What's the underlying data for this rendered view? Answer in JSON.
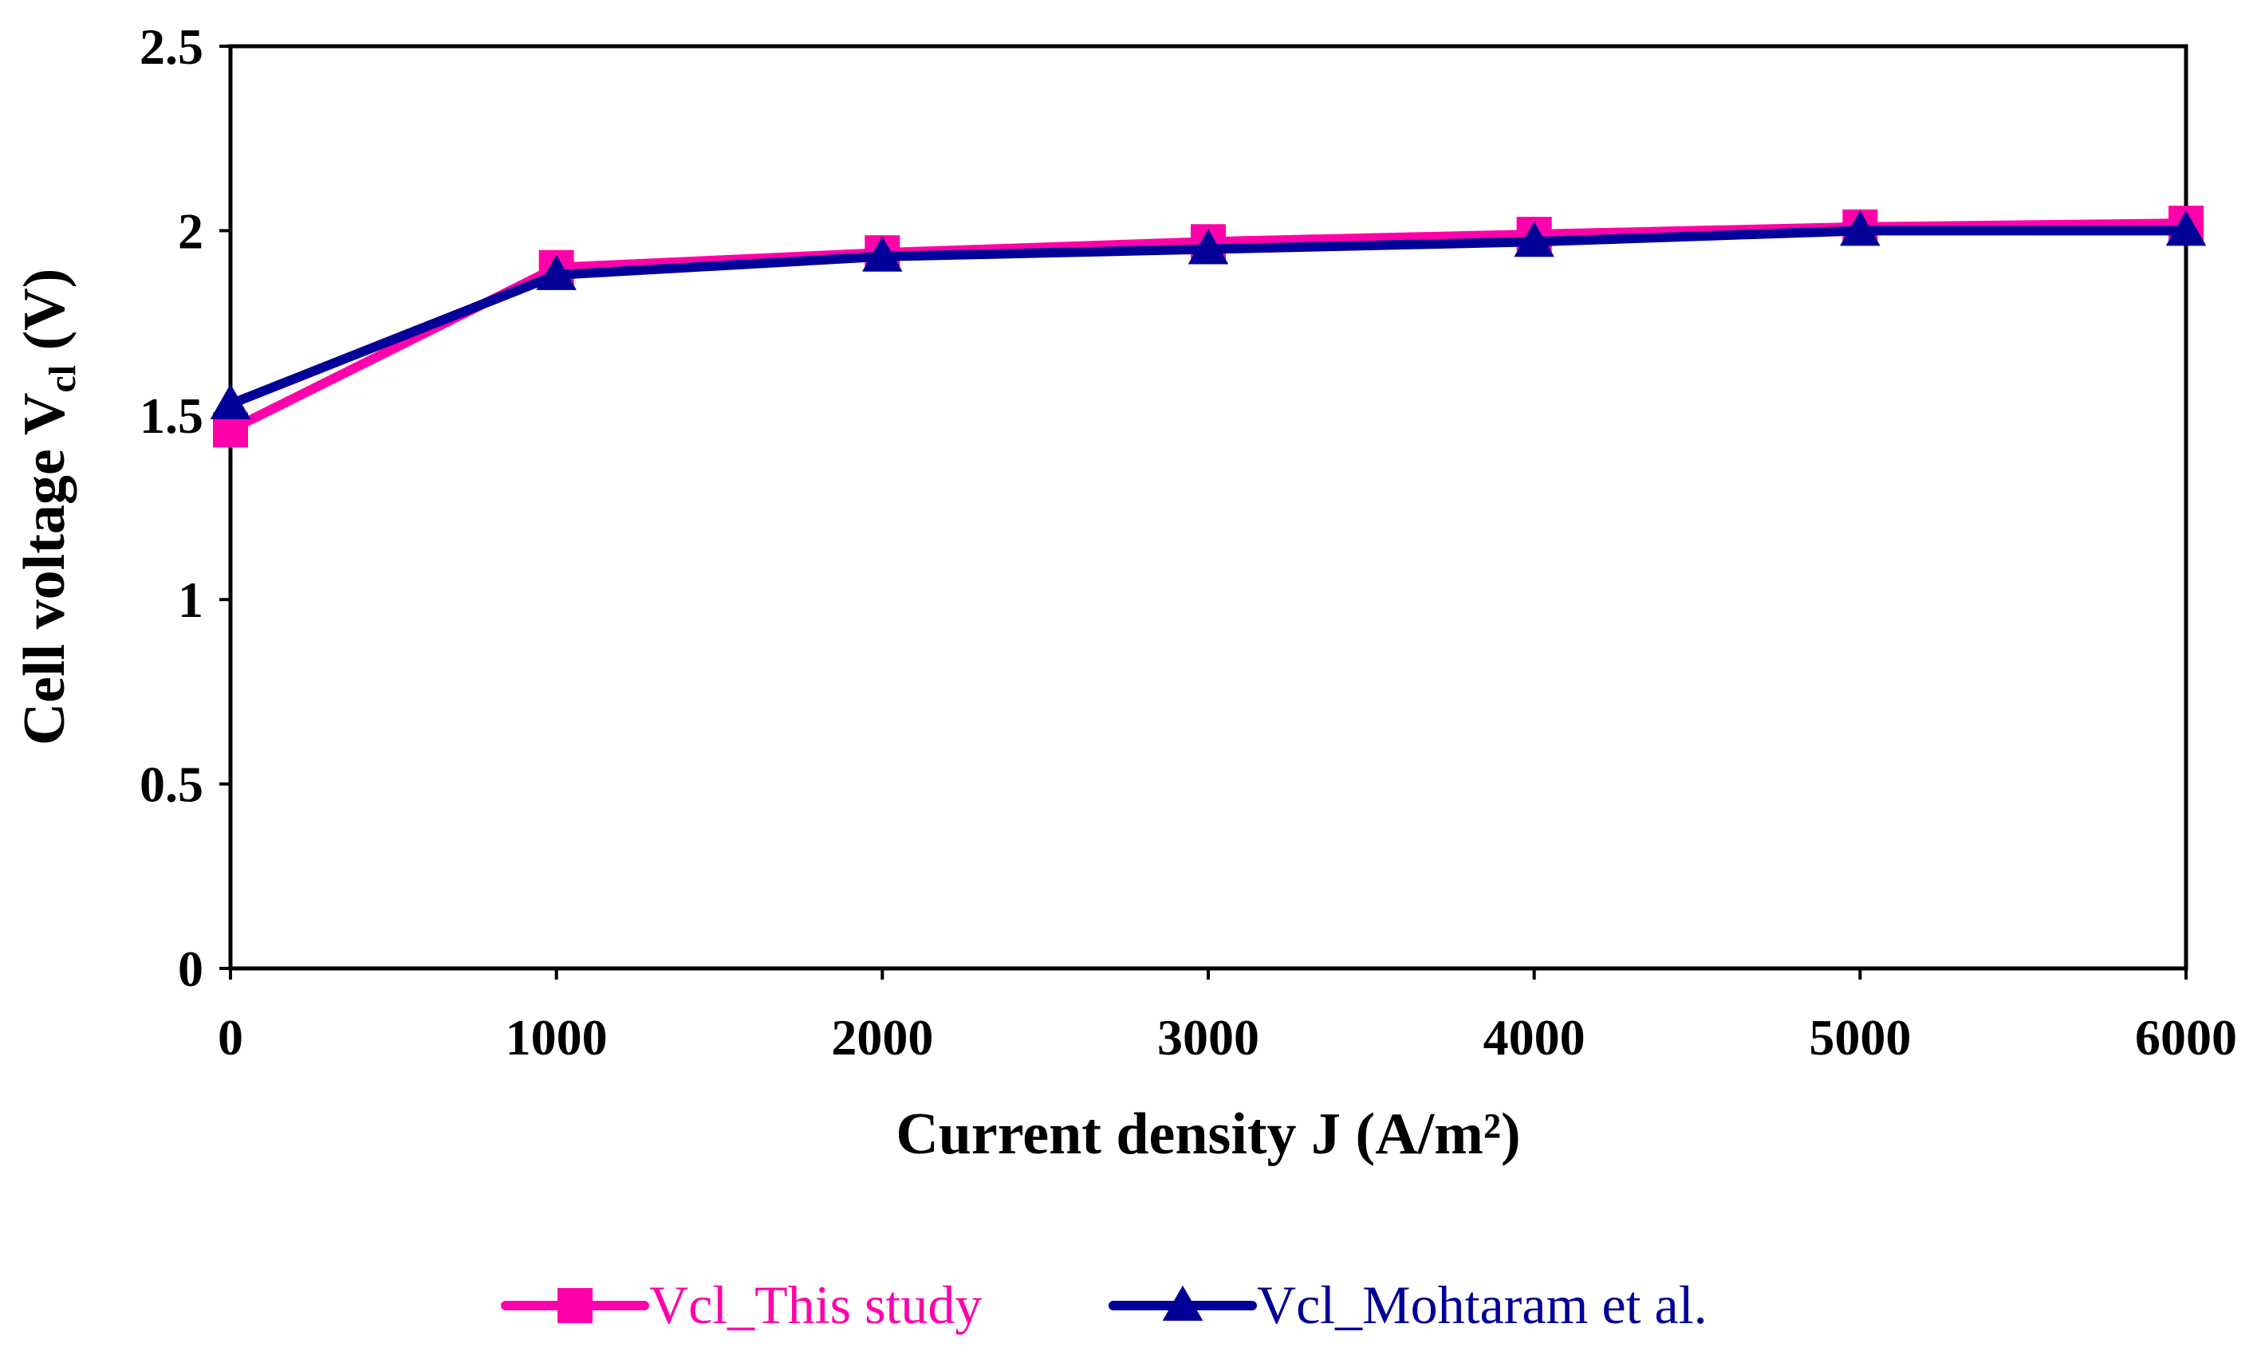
{
  "chart_data": {
    "type": "line",
    "title": "",
    "xlabel": "Current density J (A/m²)",
    "ylabel": {
      "main": "Cell voltage V",
      "subscript": "cl",
      "unit": " (V)"
    },
    "x": [
      0,
      1000,
      2000,
      3000,
      4000,
      5000,
      6000
    ],
    "xlim": [
      0,
      6000
    ],
    "ylim": [
      0,
      2.5
    ],
    "x_ticks": [
      "0",
      "1000",
      "2000",
      "3000",
      "4000",
      "5000",
      "6000"
    ],
    "y_ticks": [
      "0",
      "0.5",
      "1",
      "1.5",
      "2",
      "2.5"
    ],
    "grid": false,
    "legend_position": "bottom",
    "series": [
      {
        "name": "Vcl_This study",
        "marker": "square",
        "color": "#ff00aa",
        "values": [
          1.46,
          1.9,
          1.94,
          1.97,
          1.99,
          2.01,
          2.02
        ]
      },
      {
        "name": "Vcl_Mohtaram et al.",
        "marker": "triangle",
        "color": "#000099",
        "values": [
          1.53,
          1.88,
          1.93,
          1.95,
          1.97,
          2.0,
          2.0
        ]
      }
    ]
  }
}
